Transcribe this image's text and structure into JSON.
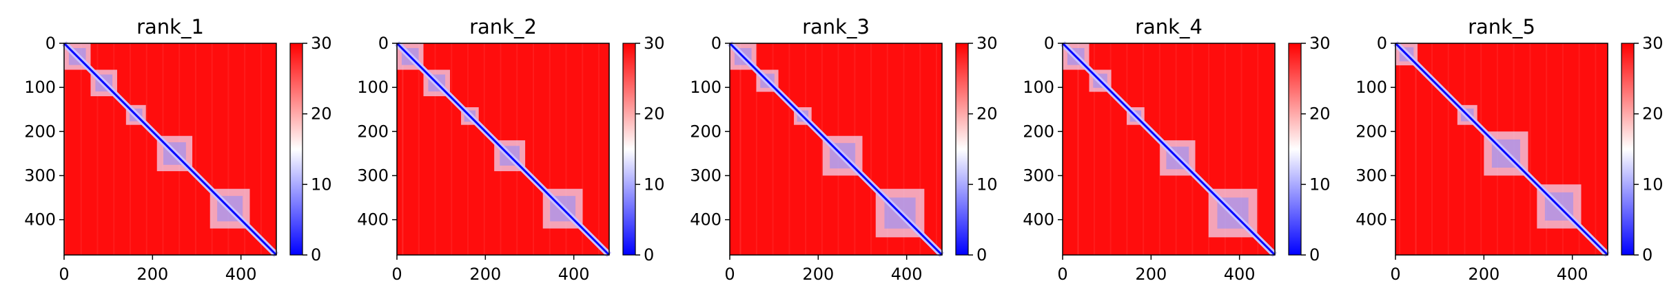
{
  "chart_data": [
    {
      "type": "heatmap",
      "title": "rank_1",
      "xlim": [
        0,
        480
      ],
      "ylim": [
        480,
        0
      ],
      "xticks": [
        0,
        200,
        400
      ],
      "yticks": [
        0,
        100,
        200,
        300,
        400
      ],
      "colorbar": {
        "min": 0,
        "max": 30,
        "ticks": [
          0,
          10,
          20,
          30
        ],
        "colors": [
          "#0000ff",
          "#ffffff",
          "#ff0000"
        ]
      },
      "diagonal_blocks": [
        [
          0,
          60
        ],
        [
          60,
          120
        ],
        [
          140,
          185
        ],
        [
          210,
          290
        ],
        [
          330,
          420
        ]
      ]
    },
    {
      "type": "heatmap",
      "title": "rank_2",
      "xlim": [
        0,
        480
      ],
      "ylim": [
        480,
        0
      ],
      "xticks": [
        0,
        200,
        400
      ],
      "yticks": [
        0,
        100,
        200,
        300,
        400
      ],
      "colorbar": {
        "min": 0,
        "max": 30,
        "ticks": [
          0,
          10,
          20,
          30
        ],
        "colors": [
          "#0000ff",
          "#ffffff",
          "#ff0000"
        ]
      },
      "diagonal_blocks": [
        [
          0,
          60
        ],
        [
          60,
          120
        ],
        [
          145,
          185
        ],
        [
          220,
          290
        ],
        [
          330,
          420
        ]
      ]
    },
    {
      "type": "heatmap",
      "title": "rank_3",
      "xlim": [
        0,
        480
      ],
      "ylim": [
        480,
        0
      ],
      "xticks": [
        0,
        200,
        400
      ],
      "yticks": [
        0,
        100,
        200,
        300,
        400
      ],
      "colorbar": {
        "min": 0,
        "max": 30,
        "ticks": [
          0,
          10,
          20,
          30
        ],
        "colors": [
          "#0000ff",
          "#ffffff",
          "#ff0000"
        ]
      },
      "diagonal_blocks": [
        [
          0,
          60
        ],
        [
          60,
          110
        ],
        [
          145,
          185
        ],
        [
          210,
          300
        ],
        [
          330,
          440
        ]
      ]
    },
    {
      "type": "heatmap",
      "title": "rank_4",
      "xlim": [
        0,
        480
      ],
      "ylim": [
        480,
        0
      ],
      "xticks": [
        0,
        200,
        400
      ],
      "yticks": [
        0,
        100,
        200,
        300,
        400
      ],
      "colorbar": {
        "min": 0,
        "max": 30,
        "ticks": [
          0,
          10,
          20,
          30
        ],
        "colors": [
          "#0000ff",
          "#ffffff",
          "#ff0000"
        ]
      },
      "diagonal_blocks": [
        [
          0,
          60
        ],
        [
          60,
          110
        ],
        [
          145,
          185
        ],
        [
          220,
          300
        ],
        [
          330,
          440
        ]
      ]
    },
    {
      "type": "heatmap",
      "title": "rank_5",
      "xlim": [
        0,
        480
      ],
      "ylim": [
        480,
        0
      ],
      "xticks": [
        0,
        200,
        400
      ],
      "yticks": [
        0,
        100,
        200,
        300,
        400
      ],
      "colorbar": {
        "min": 0,
        "max": 30,
        "ticks": [
          0,
          10,
          20,
          30
        ],
        "colors": [
          "#0000ff",
          "#ffffff",
          "#ff0000"
        ]
      },
      "diagonal_blocks": [
        [
          0,
          50
        ],
        [
          140,
          185
        ],
        [
          200,
          300
        ],
        [
          320,
          420
        ]
      ]
    }
  ]
}
